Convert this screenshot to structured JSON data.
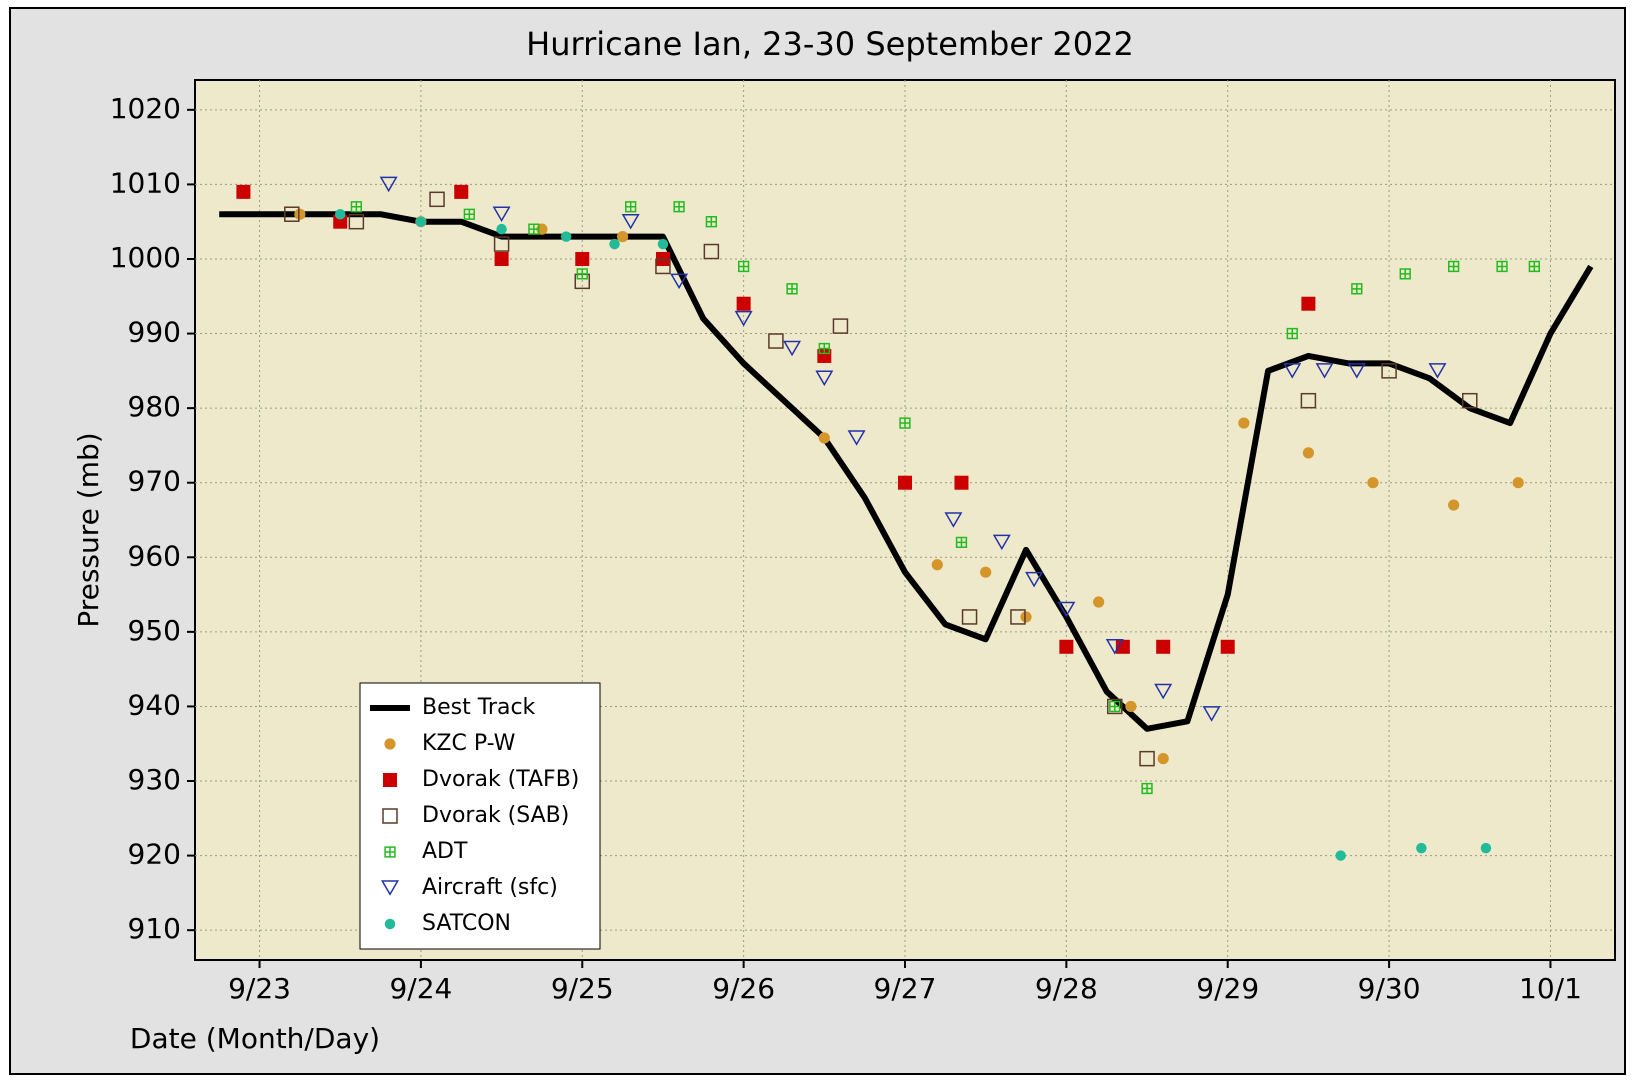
{
  "chart_data": {
    "type": "scatter",
    "title": "Hurricane Ian, 23-30 September 2022",
    "ylabel": "Pressure (mb)",
    "xlabel": "Date (Month/Day)",
    "xlim": [
      22.6,
      31.4
    ],
    "xticks": [
      {
        "value": 23,
        "label": "9/23"
      },
      {
        "value": 24,
        "label": "9/24"
      },
      {
        "value": 25,
        "label": "9/25"
      },
      {
        "value": 26,
        "label": "9/26"
      },
      {
        "value": 27,
        "label": "9/27"
      },
      {
        "value": 28,
        "label": "9/28"
      },
      {
        "value": 29,
        "label": "9/29"
      },
      {
        "value": 30,
        "label": "9/30"
      },
      {
        "value": 31,
        "label": "10/1"
      }
    ],
    "ylim": [
      906,
      1024
    ],
    "yticks": [
      910,
      920,
      930,
      940,
      950,
      960,
      970,
      980,
      990,
      1000,
      1010,
      1020
    ],
    "grid": true,
    "legend": "lower left",
    "series": [
      {
        "name": "Best Track",
        "marker": "line",
        "color": "#000000",
        "x": [
          22.75,
          23.0,
          23.25,
          23.5,
          23.75,
          24.0,
          24.25,
          24.5,
          24.75,
          25.0,
          25.25,
          25.5,
          25.75,
          26.0,
          26.25,
          26.5,
          26.75,
          27.0,
          27.25,
          27.5,
          27.75,
          28.0,
          28.25,
          28.5,
          28.75,
          29.0,
          29.25,
          29.5,
          29.75,
          30.0,
          30.25,
          30.5,
          30.75,
          31.0,
          31.25
        ],
        "values": [
          1006,
          1006,
          1006,
          1006,
          1006,
          1005,
          1005,
          1003,
          1003,
          1003,
          1003,
          1003,
          992,
          986,
          981,
          976,
          968,
          958,
          951,
          949,
          961,
          952,
          942,
          937,
          938,
          955,
          985,
          987,
          986,
          986,
          984,
          980,
          978,
          990,
          999
        ]
      },
      {
        "name": "KZC P-W",
        "marker": "circle",
        "color": "#d4962a",
        "x": [
          23.25,
          24.0,
          24.75,
          25.25,
          26.5,
          27.2,
          27.5,
          27.75,
          28.2,
          28.4,
          28.6,
          29.1,
          29.5,
          29.9,
          30.4,
          30.8
        ],
        "values": [
          1006,
          1005,
          1004,
          1003,
          976,
          959,
          958,
          952,
          954,
          940,
          933,
          978,
          974,
          970,
          967,
          970
        ]
      },
      {
        "name": "Dvorak (TAFB)",
        "marker": "square",
        "color": "#cc0000",
        "x": [
          22.9,
          23.5,
          24.25,
          24.5,
          25.0,
          25.5,
          26.0,
          26.5,
          27.0,
          27.35,
          28.0,
          28.35,
          28.6,
          29.0,
          29.5
        ],
        "values": [
          1009,
          1005,
          1009,
          1000,
          1000,
          1000,
          994,
          987,
          970,
          970,
          948,
          948,
          948,
          948,
          994
        ]
      },
      {
        "name": "Dvorak (SAB)",
        "marker": "open-square",
        "color": "#5a3a2a",
        "x": [
          23.2,
          23.6,
          24.1,
          24.5,
          25.0,
          25.5,
          25.8,
          26.2,
          26.6,
          27.4,
          27.7,
          28.3,
          28.5,
          29.5,
          30.0,
          30.5
        ],
        "values": [
          1006,
          1005,
          1008,
          1002,
          997,
          999,
          1001,
          989,
          991,
          952,
          952,
          940,
          933,
          981,
          985,
          981
        ]
      },
      {
        "name": "ADT",
        "marker": "crossed-square",
        "color": "#22bb22",
        "x": [
          23.6,
          24.3,
          24.7,
          25.0,
          25.3,
          25.6,
          25.8,
          26.0,
          26.3,
          26.5,
          27.0,
          27.35,
          28.3,
          28.5,
          29.4,
          29.8,
          30.1,
          30.4,
          30.7,
          30.9
        ],
        "values": [
          1007,
          1006,
          1004,
          998,
          1007,
          1007,
          1005,
          999,
          996,
          988,
          978,
          962,
          940,
          929,
          990,
          996,
          998,
          999,
          999,
          999
        ]
      },
      {
        "name": "Aircraft (sfc)",
        "marker": "triangle",
        "color": "#2233aa",
        "x": [
          23.8,
          24.5,
          25.3,
          25.6,
          26.0,
          26.3,
          26.5,
          26.7,
          27.3,
          27.6,
          27.8,
          28.0,
          28.3,
          28.6,
          28.9,
          29.4,
          29.6,
          29.8,
          30.3
        ],
        "values": [
          1010,
          1006,
          1005,
          997,
          992,
          988,
          984,
          976,
          965,
          962,
          957,
          953,
          948,
          942,
          939,
          985,
          985,
          985,
          985
        ]
      },
      {
        "name": "SATCON",
        "marker": "dot",
        "color": "#22bb99",
        "x": [
          23.5,
          24.0,
          24.5,
          24.9,
          25.2,
          25.5,
          29.7,
          30.2,
          30.6
        ],
        "values": [
          1006,
          1005,
          1004,
          1003,
          1002,
          1002,
          920,
          921,
          921
        ]
      }
    ]
  }
}
